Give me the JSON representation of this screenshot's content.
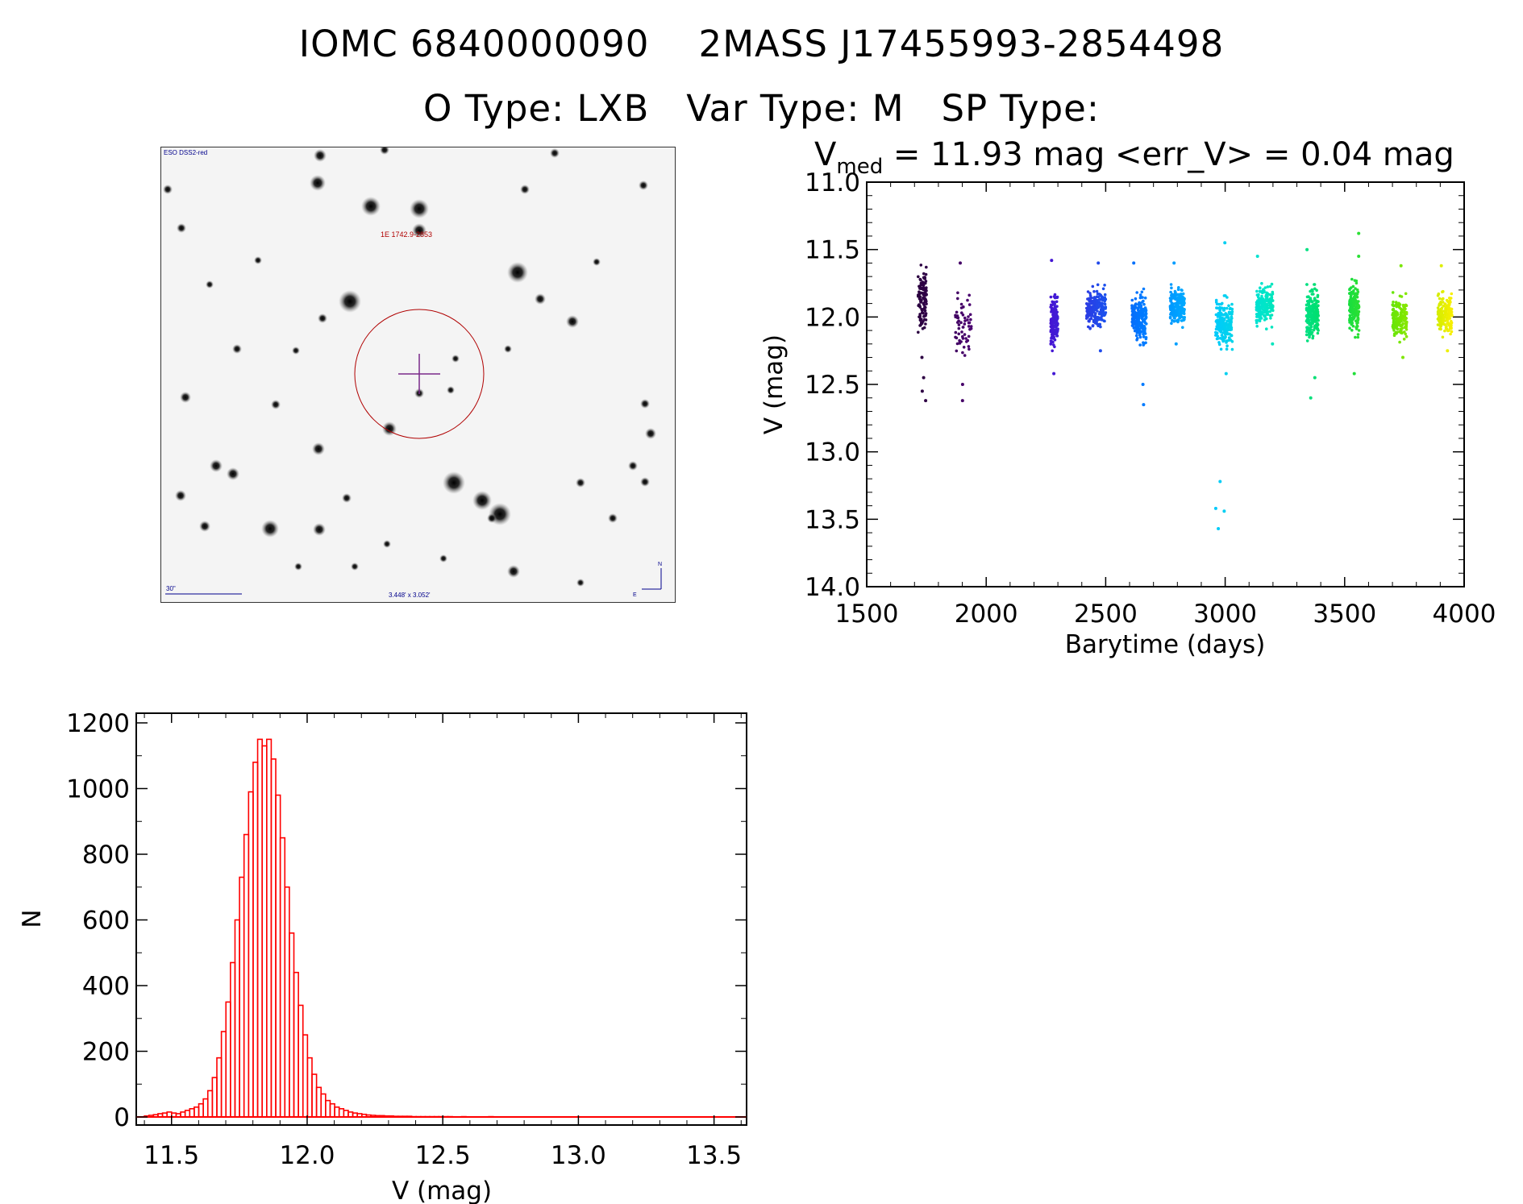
{
  "header": {
    "line1": "IOMC 6840000090    2MASS J17455993-2854498",
    "line2": "O Type: LXB   Var Type: M   SP Type:"
  },
  "finder_chart": {
    "survey_label": "ESO DSS2-red",
    "target_label": "1E 1742.9-2853",
    "scale_label": "30\"",
    "fov_label": "3.448' x 3.052'",
    "compass_n": "N",
    "compass_e": "E",
    "colors": {
      "annotation_red": "#b00000",
      "crosshair": "#7a2a8a",
      "label_blue": "#00008b"
    }
  },
  "chart_data": [
    {
      "type": "scatter",
      "title_main": "V",
      "title_sub": "med",
      "title_rest": " = 11.93 mag <err_V> = 0.04 mag",
      "xlabel": "Barytime (days)",
      "ylabel": "V (mag)",
      "xlim": [
        1500,
        4000
      ],
      "ylim": [
        14.0,
        11.0
      ],
      "y_inverted": true,
      "xticks": [
        1500,
        2000,
        2500,
        3000,
        3500,
        4000
      ],
      "yticks": [
        "11.0",
        "11.5",
        "12.0",
        "12.5",
        "13.0",
        "13.5",
        "14.0"
      ],
      "color_scale": "rainbow by time (black-purple → blue → cyan → green → yellow)",
      "seasons": [
        {
          "x_start": 1715,
          "x_end": 1750,
          "center": 11.88,
          "spread": 0.22,
          "count": 110,
          "outliers": [
            12.45,
            12.55,
            12.62,
            12.3
          ]
        },
        {
          "x_start": 1870,
          "x_end": 1940,
          "center": 12.05,
          "spread": 0.2,
          "count": 60,
          "outliers": [
            12.5,
            12.62,
            11.6
          ]
        },
        {
          "x_start": 2270,
          "x_end": 2300,
          "center": 12.03,
          "spread": 0.17,
          "count": 170,
          "outliers": [
            12.42,
            11.58
          ]
        },
        {
          "x_start": 2420,
          "x_end": 2500,
          "center": 11.93,
          "spread": 0.13,
          "count": 210,
          "outliers": [
            11.6,
            12.25
          ]
        },
        {
          "x_start": 2610,
          "x_end": 2670,
          "center": 12.0,
          "spread": 0.16,
          "count": 210,
          "outliers": [
            12.65,
            12.5,
            11.6
          ]
        },
        {
          "x_start": 2770,
          "x_end": 2830,
          "center": 11.92,
          "spread": 0.13,
          "count": 190,
          "outliers": [
            11.6,
            12.2
          ]
        },
        {
          "x_start": 2960,
          "x_end": 3030,
          "center": 12.05,
          "spread": 0.16,
          "count": 200,
          "outliers": [
            13.22,
            13.42,
            13.44,
            13.57,
            11.45,
            12.42
          ]
        },
        {
          "x_start": 3130,
          "x_end": 3200,
          "center": 11.92,
          "spread": 0.13,
          "count": 190,
          "outliers": [
            11.55,
            12.2
          ]
        },
        {
          "x_start": 3340,
          "x_end": 3390,
          "center": 11.98,
          "spread": 0.17,
          "count": 190,
          "outliers": [
            12.6,
            11.5,
            12.45
          ]
        },
        {
          "x_start": 3520,
          "x_end": 3560,
          "center": 11.93,
          "spread": 0.17,
          "count": 170,
          "outliers": [
            11.38,
            12.42,
            11.55
          ]
        },
        {
          "x_start": 3700,
          "x_end": 3760,
          "center": 12.0,
          "spread": 0.15,
          "count": 170,
          "outliers": [
            11.62,
            12.3
          ]
        },
        {
          "x_start": 3890,
          "x_end": 3950,
          "center": 11.98,
          "spread": 0.13,
          "count": 160,
          "outliers": [
            11.62,
            12.25
          ]
        }
      ]
    },
    {
      "type": "bar",
      "subtype": "histogram",
      "xlabel": "V (mag)",
      "ylabel": "N",
      "xlim": [
        11.37,
        13.62
      ],
      "ylim": [
        0,
        1200
      ],
      "xticks": [
        "11.5",
        "12.0",
        "12.5",
        "13.0",
        "13.5"
      ],
      "yticks": [
        "0",
        "200",
        "400",
        "600",
        "800",
        "1000",
        "1200"
      ],
      "bin_start": 11.4,
      "bin_width": 0.0167,
      "values": [
        3,
        5,
        7,
        10,
        12,
        15,
        12,
        10,
        15,
        20,
        25,
        30,
        40,
        55,
        80,
        120,
        180,
        260,
        350,
        470,
        600,
        730,
        860,
        990,
        1080,
        1150,
        1130,
        1150,
        1090,
        980,
        850,
        700,
        560,
        440,
        340,
        250,
        180,
        130,
        90,
        70,
        50,
        40,
        30,
        25,
        20,
        15,
        12,
        10,
        8,
        6,
        5,
        4,
        4,
        3,
        3,
        2,
        2,
        2,
        2,
        1,
        1,
        1,
        1,
        1,
        1,
        1,
        1,
        1,
        0,
        0,
        1,
        0,
        0,
        0,
        0,
        0,
        1,
        0,
        0,
        0,
        0,
        0,
        0,
        0,
        0,
        0,
        0,
        0,
        0,
        0,
        0,
        0,
        0,
        0,
        0,
        0,
        0,
        0,
        0,
        0,
        0,
        0,
        0,
        0,
        0,
        0,
        0,
        0,
        0,
        0,
        0,
        0,
        0,
        0,
        0,
        0,
        0,
        0,
        0,
        0,
        0,
        0,
        0,
        0,
        0,
        0,
        0,
        0,
        0,
        0,
        0,
        0
      ],
      "colors": {
        "bars": "#ff0000"
      }
    }
  ]
}
